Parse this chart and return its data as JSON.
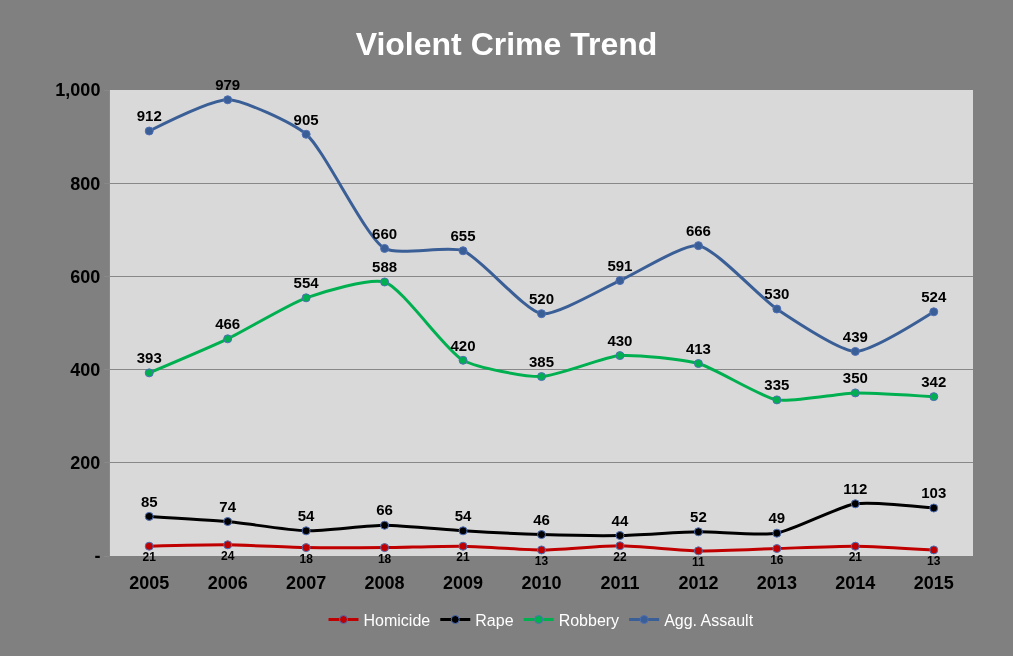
{
  "chart_data": {
    "type": "line",
    "title": "Violent Crime Trend",
    "categories": [
      "2005",
      "2006",
      "2007",
      "2008",
      "2009",
      "2010",
      "2011",
      "2012",
      "2013",
      "2014",
      "2015"
    ],
    "series": [
      {
        "name": "Homicide",
        "color": "#c00000",
        "values": [
          21,
          24,
          18,
          18,
          21,
          13,
          22,
          11,
          16,
          21,
          13
        ]
      },
      {
        "name": "Rape",
        "color": "#000000",
        "values": [
          85,
          74,
          54,
          66,
          54,
          46,
          44,
          52,
          49,
          112,
          103
        ]
      },
      {
        "name": "Robbery",
        "color": "#00b050",
        "values": [
          393,
          466,
          554,
          588,
          420,
          385,
          430,
          413,
          335,
          350,
          342
        ]
      },
      {
        "name": "Agg. Assault",
        "color": "#3a5e96",
        "values": [
          912,
          979,
          905,
          660,
          655,
          520,
          591,
          666,
          530,
          439,
          524
        ]
      }
    ],
    "ylim": [
      0,
      1000
    ],
    "yticks": [
      {
        "value": 0,
        "label": "-"
      },
      200,
      400,
      600,
      800,
      {
        "value": 1000,
        "label": "1,000"
      }
    ],
    "grid": "y",
    "legend": "bottom",
    "marker": "circle",
    "line_style": "solid",
    "data_labels": true
  }
}
